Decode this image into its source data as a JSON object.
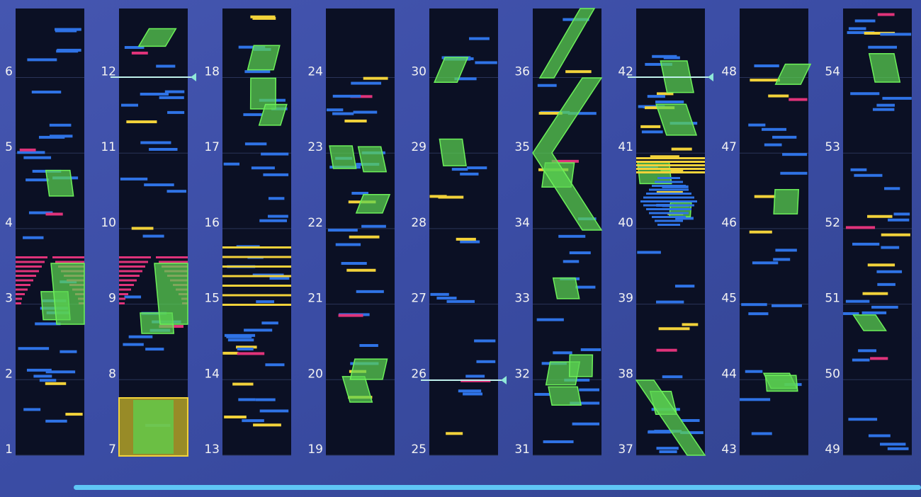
{
  "columns": [
    {
      "measures": [
        1,
        2,
        3,
        4,
        5,
        6
      ]
    },
    {
      "measures": [
        7,
        8,
        9,
        10,
        11,
        12
      ]
    },
    {
      "measures": [
        13,
        14,
        15,
        16,
        17,
        18
      ]
    },
    {
      "measures": [
        19,
        20,
        21,
        22,
        23,
        24
      ]
    },
    {
      "measures": [
        25,
        26,
        27,
        28,
        29,
        30
      ]
    },
    {
      "measures": [
        31,
        32,
        33,
        34,
        35,
        36
      ]
    },
    {
      "measures": [
        37,
        38,
        39,
        40,
        41,
        42
      ]
    },
    {
      "measures": [
        43,
        44,
        45,
        46,
        47,
        48
      ]
    },
    {
      "measures": [
        49,
        50,
        51,
        52,
        53,
        54
      ]
    }
  ]
}
